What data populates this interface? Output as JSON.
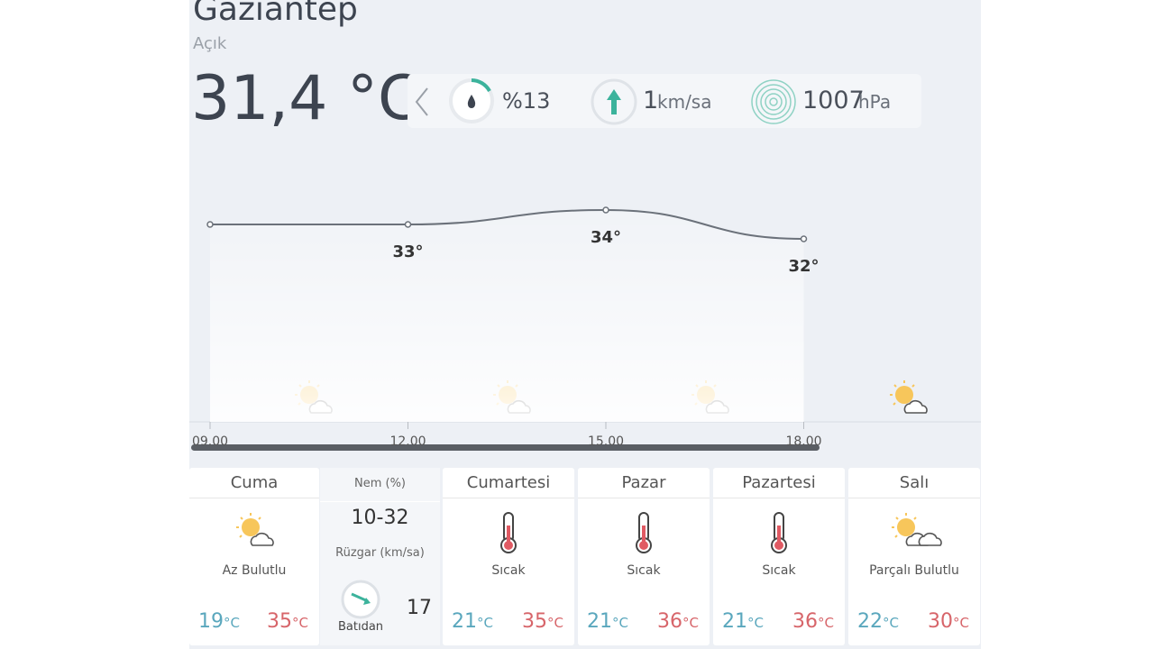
{
  "header": {
    "city": "Gaziantep",
    "condition": "Açık",
    "temperature": "31,4 °C"
  },
  "current": {
    "humidity": "%13",
    "wind_value": "1",
    "wind_unit": "km/sa",
    "pressure_value": "1007",
    "pressure_unit": "hPa"
  },
  "hourly": {
    "times": [
      "09.00",
      "12.00",
      "15.00",
      "18.00"
    ],
    "temps": [
      33,
      33,
      34,
      32
    ],
    "temp_labels": [
      null,
      "33°",
      "34°",
      "32°"
    ]
  },
  "days": [
    {
      "name": "Cuma",
      "condition": "Az Bulutlu",
      "low": "19",
      "high": "35",
      "unit": "°C"
    },
    {
      "name": "Cumartesi",
      "condition": "Sıcak",
      "low": "21",
      "high": "35",
      "unit": "°C"
    },
    {
      "name": "Pazar",
      "condition": "Sıcak",
      "low": "21",
      "high": "36",
      "unit": "°C"
    },
    {
      "name": "Pazartesi",
      "condition": "Sıcak",
      "low": "21",
      "high": "36",
      "unit": "°C"
    },
    {
      "name": "Salı",
      "condition": "Parçalı Bulutlu",
      "low": "22",
      "high": "30",
      "unit": "°C"
    }
  ],
  "details": {
    "humidity_label": "Nem (%)",
    "humidity_range": "10-32",
    "wind_label": "Rüzgar (km/sa)",
    "wind_direction": "Batıdan",
    "wind_speed": "17"
  }
}
